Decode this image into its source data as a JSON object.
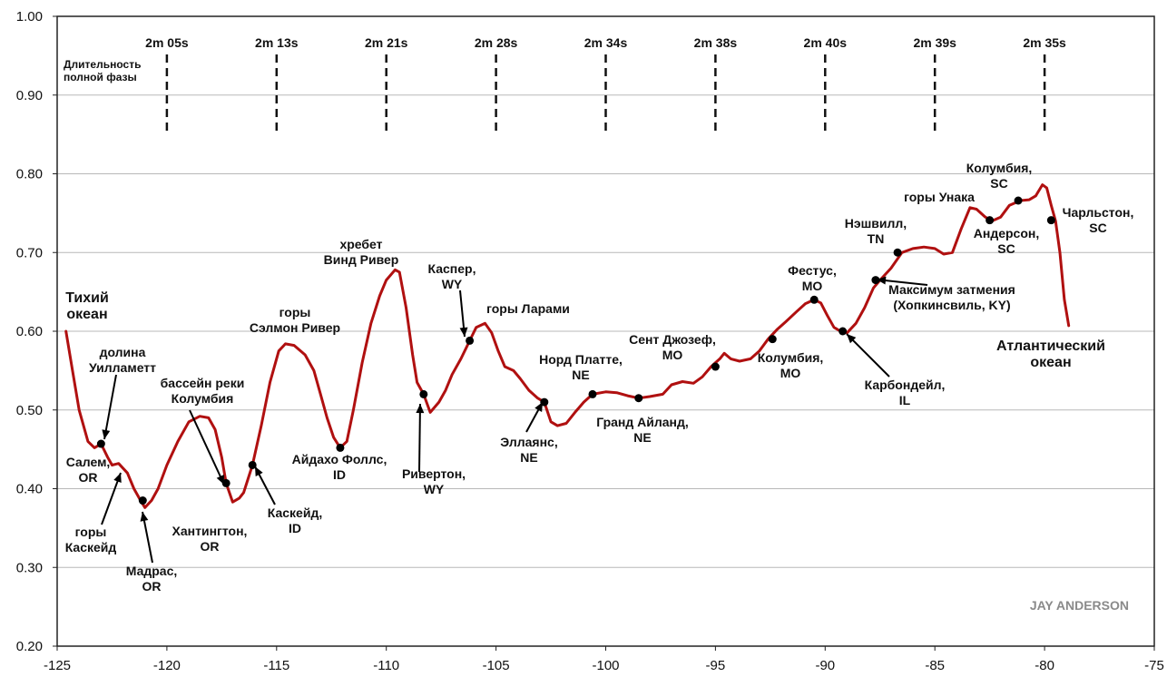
{
  "chart_data": {
    "type": "line",
    "title": "",
    "xlabel": "",
    "ylabel": "",
    "xlim": [
      -125,
      -75
    ],
    "ylim": [
      0.2,
      1.0
    ],
    "x_ticks": [
      -125,
      -120,
      -115,
      -110,
      -105,
      -100,
      -95,
      -90,
      -85,
      -80,
      -75
    ],
    "x_tick_labels": [
      "-125",
      "-120",
      "-115",
      "-110",
      "-105",
      "-100",
      "-95",
      "-90",
      "-85",
      "-80",
      "-75"
    ],
    "y_ticks": [
      0.2,
      0.3,
      0.4,
      0.5,
      0.6,
      0.7,
      0.8,
      0.9,
      1.0
    ],
    "y_tick_labels": [
      "0.20",
      "0.30",
      "0.40",
      "0.50",
      "0.60",
      "0.70",
      "0.80",
      "0.90",
      "1.00"
    ],
    "grid": "horizontal",
    "line_color": "#b01010",
    "series": [
      {
        "name": "",
        "points": [
          [
            -124.6,
            0.6
          ],
          [
            -124.3,
            0.55
          ],
          [
            -124.0,
            0.5
          ],
          [
            -123.6,
            0.46
          ],
          [
            -123.3,
            0.452
          ],
          [
            -123.0,
            0.457
          ],
          [
            -122.7,
            0.44
          ],
          [
            -122.5,
            0.43
          ],
          [
            -122.2,
            0.432
          ],
          [
            -121.8,
            0.42
          ],
          [
            -121.5,
            0.4
          ],
          [
            -121.2,
            0.385
          ],
          [
            -121.0,
            0.376
          ],
          [
            -120.7,
            0.385
          ],
          [
            -120.4,
            0.4
          ],
          [
            -120.0,
            0.43
          ],
          [
            -119.5,
            0.46
          ],
          [
            -119.0,
            0.485
          ],
          [
            -118.5,
            0.492
          ],
          [
            -118.1,
            0.49
          ],
          [
            -117.8,
            0.475
          ],
          [
            -117.5,
            0.44
          ],
          [
            -117.3,
            0.407
          ],
          [
            -117.0,
            0.383
          ],
          [
            -116.7,
            0.388
          ],
          [
            -116.5,
            0.395
          ],
          [
            -116.1,
            0.43
          ],
          [
            -115.7,
            0.48
          ],
          [
            -115.3,
            0.535
          ],
          [
            -114.9,
            0.575
          ],
          [
            -114.6,
            0.584
          ],
          [
            -114.2,
            0.582
          ],
          [
            -113.7,
            0.57
          ],
          [
            -113.3,
            0.55
          ],
          [
            -113.0,
            0.52
          ],
          [
            -112.7,
            0.49
          ],
          [
            -112.4,
            0.465
          ],
          [
            -112.1,
            0.452
          ],
          [
            -111.8,
            0.46
          ],
          [
            -111.5,
            0.5
          ],
          [
            -111.1,
            0.56
          ],
          [
            -110.7,
            0.61
          ],
          [
            -110.3,
            0.645
          ],
          [
            -110.0,
            0.665
          ],
          [
            -109.6,
            0.678
          ],
          [
            -109.4,
            0.675
          ],
          [
            -109.1,
            0.63
          ],
          [
            -108.8,
            0.57
          ],
          [
            -108.6,
            0.535
          ],
          [
            -108.3,
            0.52
          ],
          [
            -108.0,
            0.497
          ],
          [
            -107.6,
            0.51
          ],
          [
            -107.3,
            0.525
          ],
          [
            -107.0,
            0.545
          ],
          [
            -106.6,
            0.565
          ],
          [
            -106.2,
            0.588
          ],
          [
            -105.9,
            0.605
          ],
          [
            -105.5,
            0.61
          ],
          [
            -105.2,
            0.598
          ],
          [
            -104.9,
            0.575
          ],
          [
            -104.6,
            0.555
          ],
          [
            -104.2,
            0.55
          ],
          [
            -103.9,
            0.54
          ],
          [
            -103.5,
            0.525
          ],
          [
            -103.1,
            0.515
          ],
          [
            -102.8,
            0.51
          ],
          [
            -102.5,
            0.485
          ],
          [
            -102.2,
            0.48
          ],
          [
            -101.8,
            0.483
          ],
          [
            -101.4,
            0.497
          ],
          [
            -101.0,
            0.51
          ],
          [
            -100.6,
            0.52
          ],
          [
            -100.0,
            0.523
          ],
          [
            -99.5,
            0.522
          ],
          [
            -99.0,
            0.518
          ],
          [
            -98.5,
            0.515
          ],
          [
            -98.0,
            0.517
          ],
          [
            -97.4,
            0.52
          ],
          [
            -97.0,
            0.532
          ],
          [
            -96.5,
            0.536
          ],
          [
            -96.0,
            0.534
          ],
          [
            -95.6,
            0.542
          ],
          [
            -95.2,
            0.555
          ],
          [
            -94.8,
            0.565
          ],
          [
            -94.6,
            0.572
          ],
          [
            -94.3,
            0.565
          ],
          [
            -93.9,
            0.562
          ],
          [
            -93.4,
            0.565
          ],
          [
            -93.0,
            0.575
          ],
          [
            -92.6,
            0.59
          ],
          [
            -92.2,
            0.602
          ],
          [
            -91.8,
            0.612
          ],
          [
            -91.3,
            0.625
          ],
          [
            -90.9,
            0.635
          ],
          [
            -90.5,
            0.64
          ],
          [
            -90.2,
            0.636
          ],
          [
            -89.9,
            0.62
          ],
          [
            -89.6,
            0.605
          ],
          [
            -89.3,
            0.6
          ],
          [
            -89.0,
            0.598
          ],
          [
            -88.6,
            0.61
          ],
          [
            -88.2,
            0.63
          ],
          [
            -87.8,
            0.655
          ],
          [
            -87.5,
            0.665
          ],
          [
            -87.0,
            0.68
          ],
          [
            -86.5,
            0.7
          ],
          [
            -86.0,
            0.705
          ],
          [
            -85.5,
            0.707
          ],
          [
            -85.0,
            0.705
          ],
          [
            -84.6,
            0.698
          ],
          [
            -84.2,
            0.7
          ],
          [
            -83.8,
            0.73
          ],
          [
            -83.4,
            0.757
          ],
          [
            -83.1,
            0.755
          ],
          [
            -82.7,
            0.745
          ],
          [
            -82.4,
            0.74
          ],
          [
            -82.0,
            0.745
          ],
          [
            -81.6,
            0.76
          ],
          [
            -81.1,
            0.766
          ],
          [
            -80.7,
            0.767
          ],
          [
            -80.4,
            0.772
          ],
          [
            -80.1,
            0.786
          ],
          [
            -79.9,
            0.782
          ],
          [
            -79.7,
            0.76
          ],
          [
            -79.5,
            0.74
          ],
          [
            -79.3,
            0.7
          ],
          [
            -79.1,
            0.64
          ],
          [
            -78.9,
            0.607
          ]
        ]
      }
    ],
    "markers": [
      {
        "x": -123.0,
        "y": 0.457
      },
      {
        "x": -121.1,
        "y": 0.385
      },
      {
        "x": -117.3,
        "y": 0.407
      },
      {
        "x": -116.1,
        "y": 0.43
      },
      {
        "x": -112.1,
        "y": 0.452
      },
      {
        "x": -108.3,
        "y": 0.52
      },
      {
        "x": -106.2,
        "y": 0.588
      },
      {
        "x": -102.8,
        "y": 0.51
      },
      {
        "x": -100.6,
        "y": 0.52
      },
      {
        "x": -98.5,
        "y": 0.515
      },
      {
        "x": -95.0,
        "y": 0.555
      },
      {
        "x": -92.4,
        "y": 0.59
      },
      {
        "x": -90.5,
        "y": 0.64
      },
      {
        "x": -89.2,
        "y": 0.6
      },
      {
        "x": -87.7,
        "y": 0.665
      },
      {
        "x": -86.7,
        "y": 0.7
      },
      {
        "x": -82.5,
        "y": 0.741
      },
      {
        "x": -81.2,
        "y": 0.766
      },
      {
        "x": -79.7,
        "y": 0.741
      }
    ],
    "duration_label": [
      "Длительность",
      "полной фазы"
    ],
    "durations": [
      {
        "x": -120,
        "label": "2m 05s"
      },
      {
        "x": -115,
        "label": "2m 13s"
      },
      {
        "x": -110,
        "label": "2m 21s"
      },
      {
        "x": -105,
        "label": "2m 28s"
      },
      {
        "x": -100,
        "label": "2m 34s"
      },
      {
        "x": -95,
        "label": "2m 38s"
      },
      {
        "x": -90,
        "label": "2m 40s"
      },
      {
        "x": -85,
        "label": "2m 39s"
      },
      {
        "x": -80,
        "label": "2m 35s"
      }
    ],
    "annotations": [
      {
        "lines": [
          "Тихий",
          "океан"
        ],
        "big": true
      },
      {
        "lines": [
          "долина",
          "Уилламетт"
        ]
      },
      {
        "lines": [
          "Салем,",
          "OR"
        ]
      },
      {
        "lines": [
          "горы",
          "Каскейд"
        ]
      },
      {
        "lines": [
          "Мадрас,",
          "OR"
        ]
      },
      {
        "lines": [
          "бассейн реки",
          "Колумбия"
        ]
      },
      {
        "lines": [
          "Хантингтон,",
          "OR"
        ]
      },
      {
        "lines": [
          "Каскейд,",
          "ID"
        ]
      },
      {
        "lines": [
          "горы",
          "Сэлмон Ривер"
        ]
      },
      {
        "lines": [
          "Айдахо Фоллс,",
          "ID"
        ]
      },
      {
        "lines": [
          "хребет",
          "Винд Ривер"
        ]
      },
      {
        "lines": [
          "Ривертон,",
          "WY"
        ]
      },
      {
        "lines": [
          "Каспер,",
          "WY"
        ]
      },
      {
        "lines": [
          "горы Ларами"
        ]
      },
      {
        "lines": [
          "Эллаянс,",
          "NE"
        ]
      },
      {
        "lines": [
          "Норд Платте,",
          "NE"
        ]
      },
      {
        "lines": [
          "Гранд Айланд,",
          "NE"
        ]
      },
      {
        "lines": [
          "Сент Джозеф,",
          "MO"
        ]
      },
      {
        "lines": [
          "Колумбия,",
          "MO"
        ]
      },
      {
        "lines": [
          "Фестус,",
          "MO"
        ]
      },
      {
        "lines": [
          "Карбондейл,",
          "IL"
        ]
      },
      {
        "lines": [
          "Максимум затмения",
          "(Хопкинсвиль, KY)"
        ]
      },
      {
        "lines": [
          "Нэшвилл,",
          "TN"
        ]
      },
      {
        "lines": [
          "горы Унака"
        ]
      },
      {
        "lines": [
          "Колумбия,",
          "SC"
        ]
      },
      {
        "lines": [
          "Андерсон,",
          "SC"
        ]
      },
      {
        "lines": [
          "Чарльстон,",
          "SC"
        ]
      },
      {
        "lines": [
          "Атлантический",
          "океан"
        ],
        "big": true
      }
    ],
    "credit": "JAY ANDERSON"
  }
}
